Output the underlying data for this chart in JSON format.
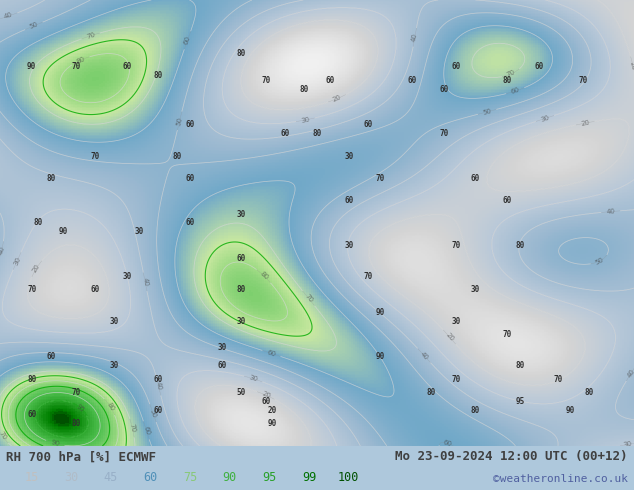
{
  "title_left": "RH 700 hPa [%] ECMWF",
  "title_right": "Mo 23-09-2024 12:00 UTC (00+12)",
  "credit": "©weatheronline.co.uk",
  "colorbar_labels": [
    "15",
    "30",
    "45",
    "60",
    "75",
    "90",
    "95",
    "99",
    "100"
  ],
  "colorbar_values": [
    15,
    30,
    45,
    60,
    75,
    90,
    95,
    99,
    100
  ],
  "colorbar_colors": [
    "#d4d4d4",
    "#b8c8d8",
    "#9ab8d0",
    "#70a8c8",
    "#a0d890",
    "#50c050",
    "#30a830",
    "#008000",
    "#006000"
  ],
  "bg_color": "#aec8dc",
  "fig_width": 6.34,
  "fig_height": 4.9,
  "dpi": 100,
  "bottom_bar_color": "#e8e8e8",
  "title_color": "#404040",
  "label_color_left": "#606060",
  "label_color_right": "#404060"
}
